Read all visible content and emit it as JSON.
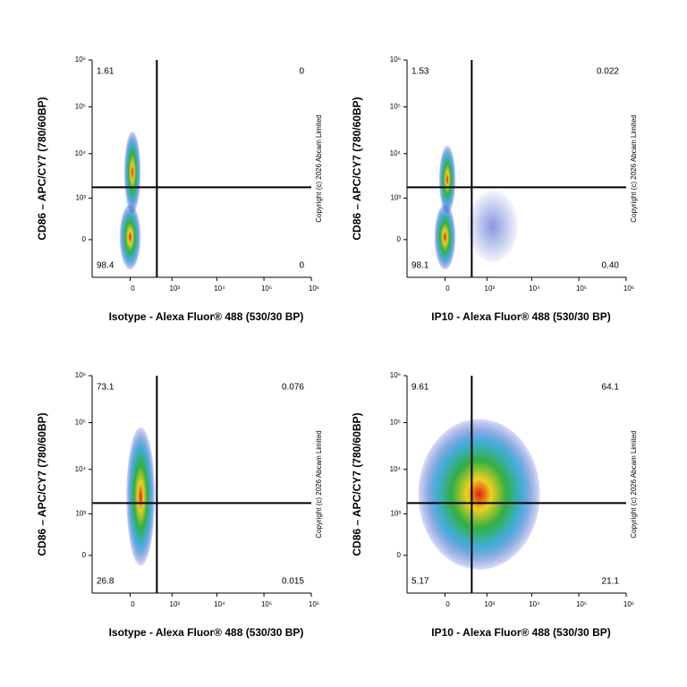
{
  "chart_data": [
    {
      "type": "scatter",
      "x_label": "Isotype - Alexa Fluor® 488 (530/30 BP)",
      "y_label": "CD86 – APC/CY7 (780/60BP)",
      "copyright": "Copyright (c) 2026 Abcam Limited",
      "xlim": [
        -800,
        1000000
      ],
      "ylim": [
        -800,
        1000000
      ],
      "xticks": [
        0,
        {
          "value": 1000,
          "label": "10³"
        },
        {
          "value": 10000,
          "label": "10⁴"
        },
        {
          "value": 100000,
          "label": "10⁵"
        },
        {
          "value": 1000000,
          "label": "10⁶"
        }
      ],
      "yticks": [
        0,
        {
          "value": 1000,
          "label": "10³"
        },
        {
          "value": 10000,
          "label": "10⁴"
        },
        {
          "value": 100000,
          "label": "10⁵"
        },
        {
          "value": 1000000,
          "label": "10⁶"
        }
      ],
      "gate": {
        "x": 400,
        "y": 1800
      },
      "values": [
        1.61,
        0,
        98.4,
        0
      ],
      "value_labels": [
        "1.61",
        "0",
        "98.4",
        "0"
      ],
      "populations": [
        {
          "x": [
            -100,
            100
          ],
          "y": [
            -500,
            700
          ]
        },
        {
          "x": [
            -50,
            100
          ],
          "y": [
            400,
            30000
          ]
        }
      ]
    },
    {
      "type": "scatter",
      "x_label": "IP10 - Alexa Fluor® 488 (530/30 BP)",
      "y_label": "CD86 – APC/CY7 (780/60BP)",
      "copyright": "Copyright (c) 2026 Abcam Limited",
      "xlim": [
        -800,
        1000000
      ],
      "ylim": [
        -800,
        1000000
      ],
      "xticks": [
        0,
        {
          "value": 1000,
          "label": "10³"
        },
        {
          "value": 10000,
          "label": "10⁴"
        },
        {
          "value": 100000,
          "label": "10⁵"
        },
        {
          "value": 1000000,
          "label": "10⁶"
        }
      ],
      "yticks": [
        0,
        {
          "value": 1000,
          "label": "10³"
        },
        {
          "value": 10000,
          "label": "10⁴"
        },
        {
          "value": 100000,
          "label": "10⁵"
        },
        {
          "value": 1000000,
          "label": "10⁶"
        }
      ],
      "gate": {
        "x": 400,
        "y": 1800
      },
      "values": [
        1.53,
        0.022,
        98.1,
        0.4
      ],
      "value_labels": [
        "1.53",
        "0.022",
        "98.1",
        "0.40"
      ],
      "populations": [
        {
          "x": [
            -100,
            100
          ],
          "y": [
            -500,
            700
          ]
        },
        {
          "x": [
            -50,
            100
          ],
          "y": [
            400,
            15000
          ]
        },
        {
          "x": [
            300,
            5000
          ],
          "y": [
            -300,
            1500
          ]
        }
      ]
    },
    {
      "type": "scatter",
      "x_label": "Isotype - Alexa Fluor® 488 (530/30 BP)",
      "y_label": "CD86 – APC/CY7 (780/60BP)",
      "copyright": "Copyright (c) 2026 Abcam Limited",
      "xlim": [
        -800,
        1000000
      ],
      "ylim": [
        -800,
        1000000
      ],
      "xticks": [
        0,
        {
          "value": 1000,
          "label": "10³"
        },
        {
          "value": 10000,
          "label": "10⁴"
        },
        {
          "value": 100000,
          "label": "10⁵"
        },
        {
          "value": 1000000,
          "label": "10⁶"
        }
      ],
      "yticks": [
        0,
        {
          "value": 1000,
          "label": "10³"
        },
        {
          "value": 10000,
          "label": "10⁴"
        },
        {
          "value": 100000,
          "label": "10⁵"
        },
        {
          "value": 1000000,
          "label": "10⁶"
        }
      ],
      "gate": {
        "x": 400,
        "y": 1800
      },
      "values": [
        73.1,
        0.076,
        26.8,
        0.015
      ],
      "value_labels": [
        "73.1",
        "0.076",
        "26.8",
        "0.015"
      ],
      "populations": [
        {
          "x": [
            -30,
            350
          ],
          "y": [
            -100,
            80000
          ]
        }
      ]
    },
    {
      "type": "scatter",
      "x_label": "IP10 - Alexa Fluor® 488 (530/30 BP)",
      "y_label": "CD86 – APC/CY7 (780/60BP)",
      "copyright": "Copyright (c) 2026 Abcam Limited",
      "xlim": [
        -800,
        1000000
      ],
      "ylim": [
        -800,
        1000000
      ],
      "xticks": [
        0,
        {
          "value": 1000,
          "label": "10³"
        },
        {
          "value": 10000,
          "label": "10⁴"
        },
        {
          "value": 100000,
          "label": "10⁵"
        },
        {
          "value": 1000000,
          "label": "10⁶"
        }
      ],
      "yticks": [
        0,
        {
          "value": 1000,
          "label": "10³"
        },
        {
          "value": 10000,
          "label": "10⁴"
        },
        {
          "value": 100000,
          "label": "10⁵"
        },
        {
          "value": 1000000,
          "label": "10⁶"
        }
      ],
      "gate": {
        "x": 400,
        "y": 1800
      },
      "values": [
        9.61,
        64.1,
        5.17,
        21.1
      ],
      "value_labels": [
        "9.61",
        "64.1",
        "5.17",
        "21.1"
      ],
      "populations": [
        {
          "x": [
            -400,
            15000
          ],
          "y": [
            -150,
            120000
          ]
        }
      ]
    }
  ]
}
